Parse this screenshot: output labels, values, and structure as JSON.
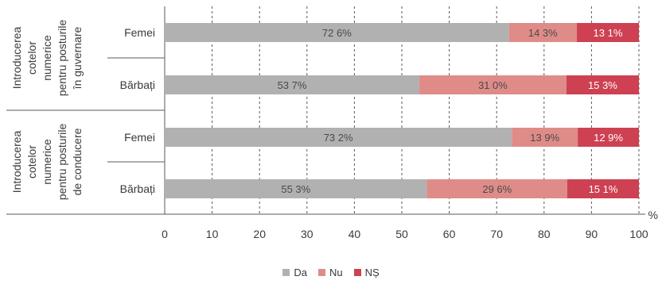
{
  "chart_data": {
    "type": "bar",
    "orientation": "horizontal",
    "stacked": true,
    "unit_label": "%",
    "xlim": [
      0,
      100
    ],
    "x_ticks": [
      "0",
      "10",
      "20",
      "30",
      "40",
      "50",
      "60",
      "70",
      "80",
      "90",
      "100"
    ],
    "groups": [
      {
        "label_lines": [
          "Introducerea",
          "cotelor",
          "numerice",
          "pentru posturile",
          "în guvernare"
        ],
        "categories": [
          "Femei",
          "Bărbați"
        ]
      },
      {
        "label_lines": [
          "Introducerea",
          "cotelor",
          "numerice",
          "pentru posturile",
          "de conducere"
        ],
        "categories": [
          "Femei",
          "Bărbați"
        ]
      }
    ],
    "series": [
      {
        "name": "Da",
        "color": "#b1b1b1",
        "values": [
          72.6,
          53.7,
          73.2,
          55.3
        ],
        "labels": [
          "72 6%",
          "53 7%",
          "73 2%",
          "55 3%"
        ]
      },
      {
        "name": "Nu",
        "color": "#df8c88",
        "values": [
          14.3,
          31.0,
          13.9,
          29.6
        ],
        "labels": [
          "14 3%",
          "31 0%",
          "13 9%",
          "29 6%"
        ]
      },
      {
        "name": "NȘ",
        "color": "#cd4152",
        "values": [
          13.1,
          15.3,
          12.9,
          15.1
        ],
        "labels": [
          "13 1%",
          "15 3%",
          "12 9%",
          "15 1%"
        ]
      }
    ],
    "legend": "bottom-center",
    "grid": true
  }
}
